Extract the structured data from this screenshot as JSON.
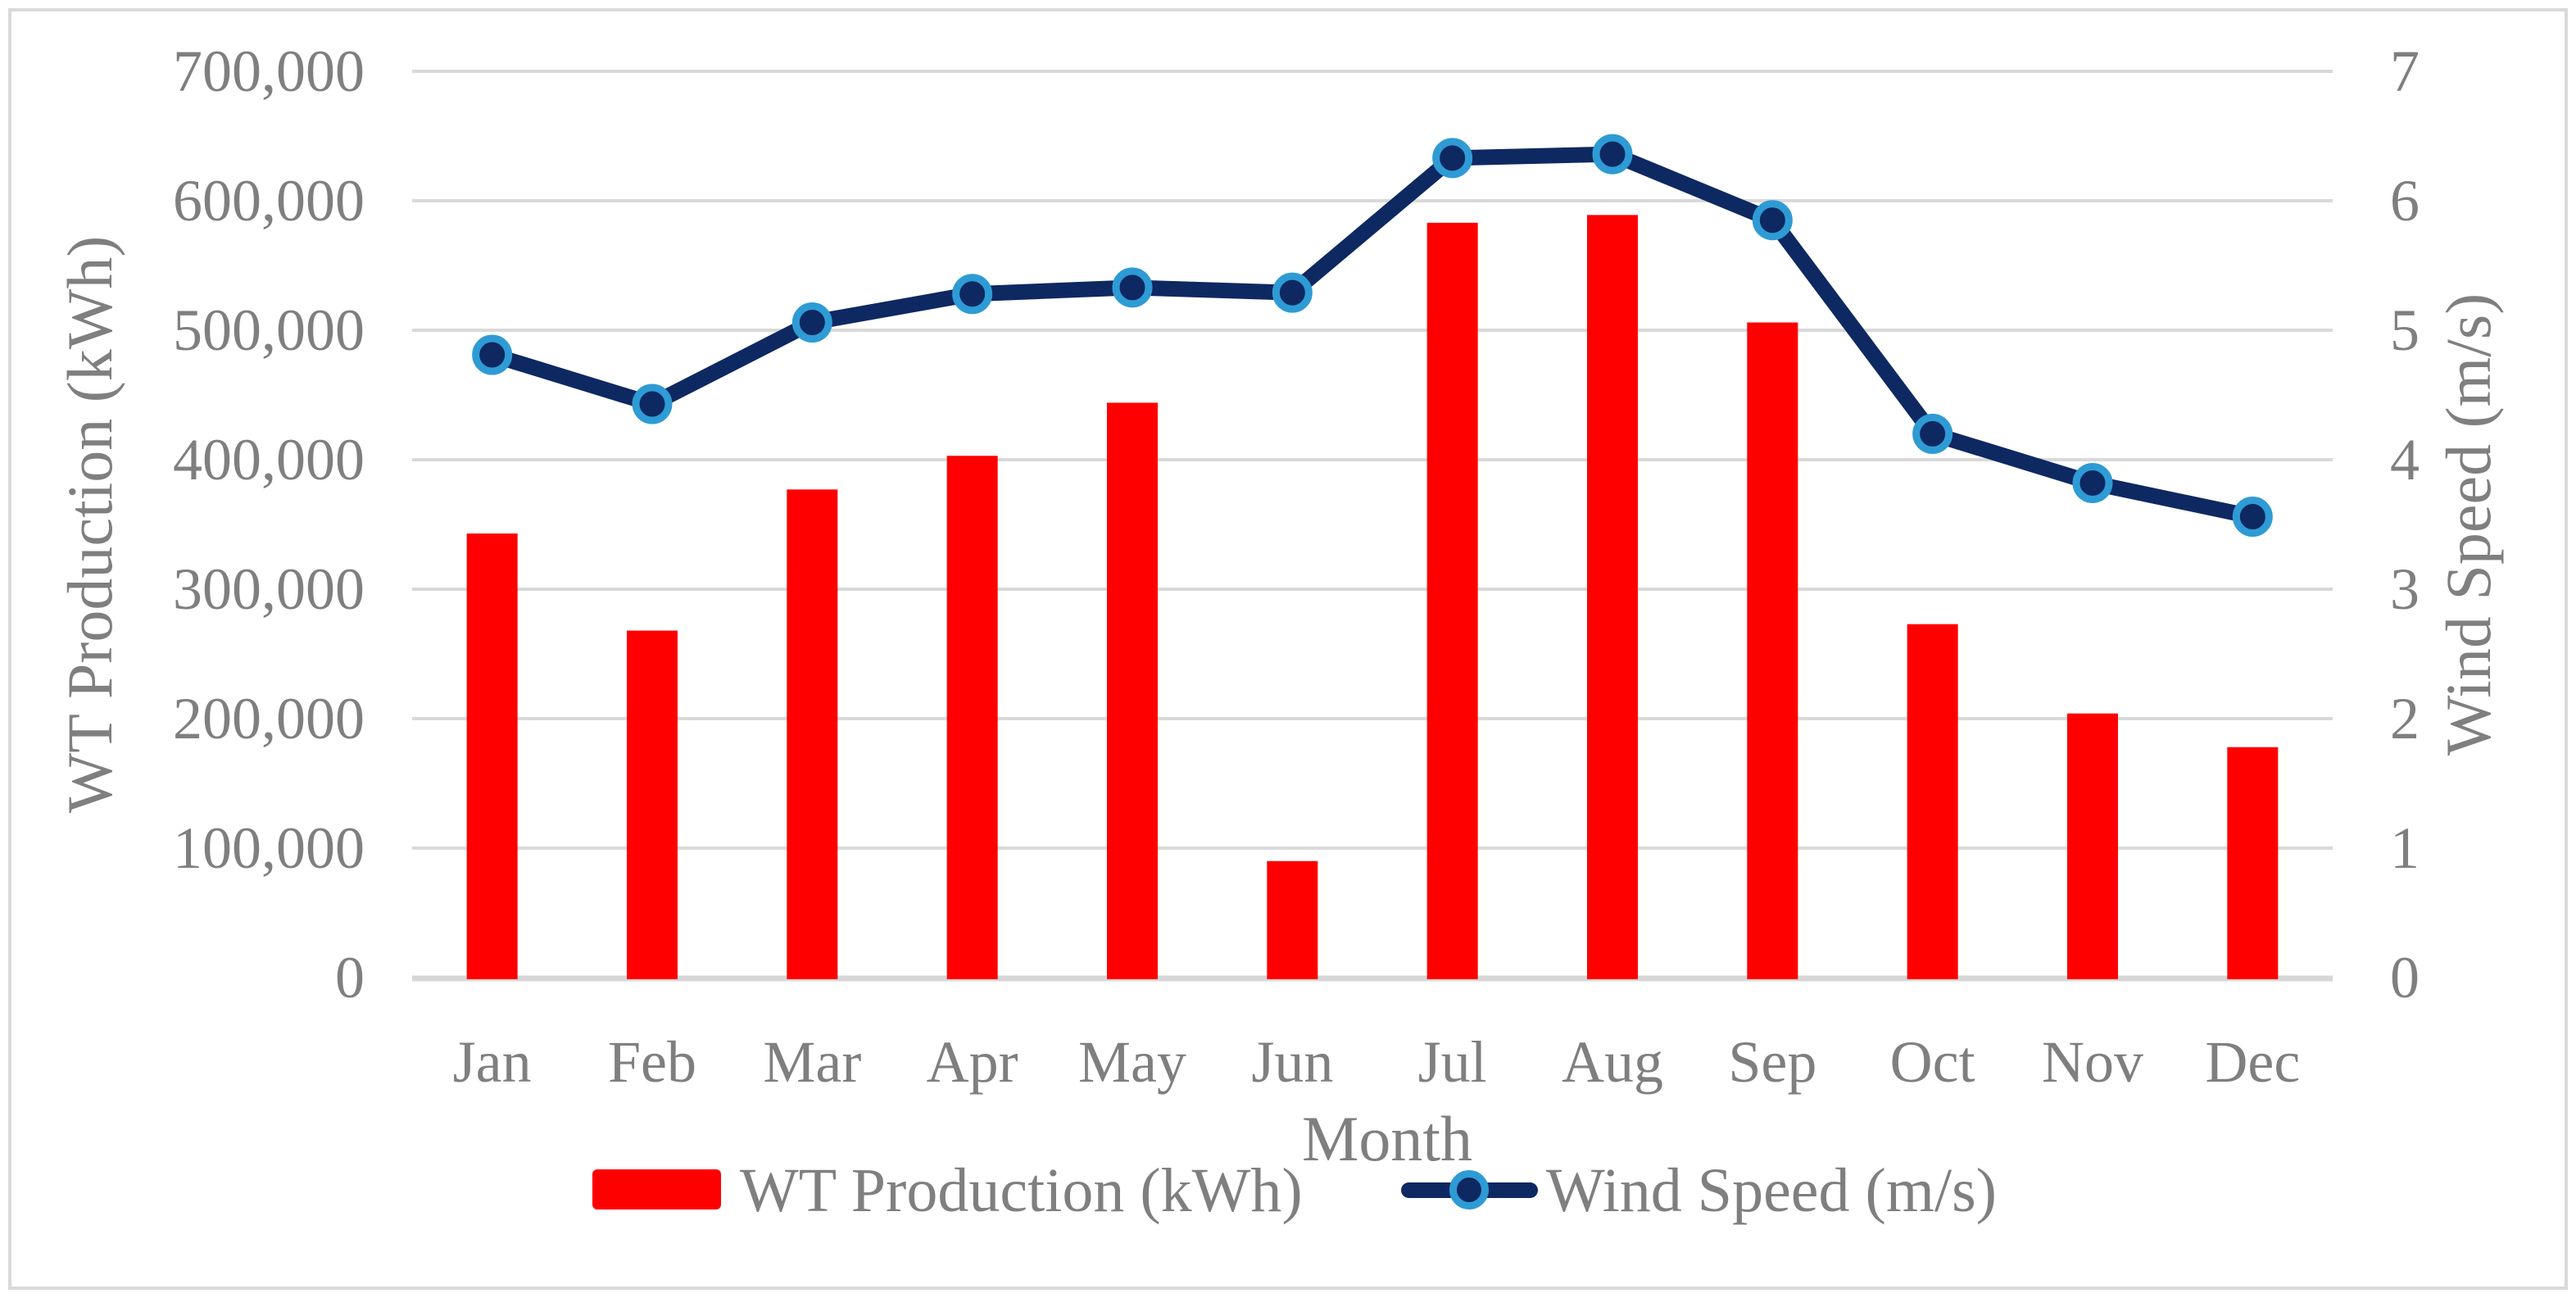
{
  "chart_data": {
    "type": "combo-bar-line",
    "categories": [
      "Jan",
      "Feb",
      "Mar",
      "Apr",
      "May",
      "Jun",
      "Jul",
      "Aug",
      "Sep",
      "Oct",
      "Nov",
      "Dec"
    ],
    "series": [
      {
        "name": "WT Production (kWh)",
        "type": "bar",
        "axis": "left",
        "values": [
          343000,
          268000,
          377000,
          403000,
          444000,
          90000,
          583000,
          589000,
          506000,
          273000,
          204000,
          178000
        ]
      },
      {
        "name": "Wind Speed (m/s)",
        "type": "line",
        "axis": "right",
        "values": [
          4.81,
          4.43,
          5.06,
          5.28,
          5.33,
          5.29,
          6.33,
          6.36,
          5.85,
          4.2,
          3.82,
          3.56
        ]
      }
    ],
    "title": "",
    "xlabel": "Month",
    "ylabel_left": "WT Production (kWh)",
    "ylabel_right": "Wind Speed (m/s)",
    "ylim_left": [
      0,
      700000
    ],
    "ylim_right": [
      0,
      7
    ],
    "left_tick_labels": [
      "0",
      "100,000",
      "200,000",
      "300,000",
      "400,000",
      "500,000",
      "600,000",
      "700,000"
    ],
    "right_tick_labels": [
      "0",
      "1",
      "2",
      "3",
      "4",
      "5",
      "6",
      "7"
    ],
    "grid": true,
    "legend_position": "bottom-center"
  },
  "axes": {
    "x_title": "Month",
    "left_title": "WT Production (kWh)",
    "right_title": "Wind Speed (m/s)"
  },
  "legend": {
    "bar_label": "WT Production (kWh)",
    "line_label": "Wind Speed (m/s)"
  },
  "colors": {
    "bar": "#fe0000",
    "line": "#0e2862",
    "marker_fill": "#0e2862",
    "marker_ring": "#2e9bd5",
    "grid": "#d9d9d9",
    "axis_line": "#d6d6d6",
    "text": "#7f7f7f",
    "border": "#d9d9d9",
    "background": "#ffffff"
  }
}
